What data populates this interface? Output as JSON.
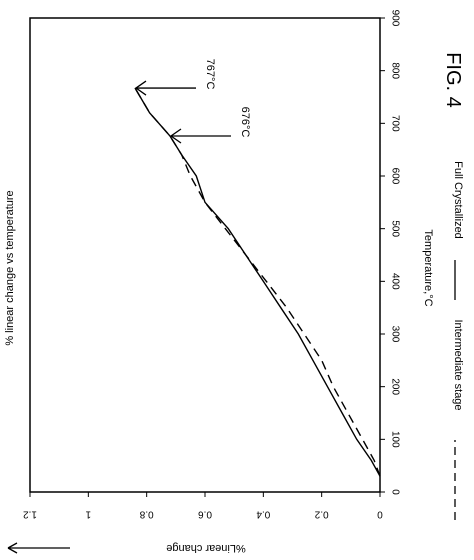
{
  "figure_label": "FIG. 4",
  "chart_data": {
    "type": "line",
    "orientation": "rotated-90-clockwise",
    "title": "% linear change vs temperature",
    "xlabel": "Temperature,°C",
    "ylabel": "%Linear change",
    "xlim": [
      0,
      900
    ],
    "ylim": [
      0,
      1.2
    ],
    "x_ticks": [
      "0",
      "100",
      "200",
      "300",
      "400",
      "500",
      "600",
      "700",
      "800",
      "900"
    ],
    "y_ticks": [
      "0",
      "0.2",
      "0.4",
      "0.6",
      "0.8",
      "1",
      "1.2"
    ],
    "grid": false,
    "legend_position": "bottom",
    "series": [
      {
        "name": "Intermediate stage",
        "style": "dashed",
        "points": [
          [
            30,
            0
          ],
          [
            60,
            0.02
          ],
          [
            100,
            0.06
          ],
          [
            150,
            0.11
          ],
          [
            200,
            0.16
          ],
          [
            250,
            0.2
          ],
          [
            300,
            0.26
          ],
          [
            350,
            0.32
          ],
          [
            400,
            0.39
          ],
          [
            450,
            0.46
          ],
          [
            500,
            0.53
          ],
          [
            550,
            0.6
          ],
          [
            600,
            0.65
          ],
          [
            640,
            0.68
          ],
          [
            676,
            0.72
          ],
          [
            720,
            0.79
          ],
          [
            767,
            0.84
          ]
        ]
      },
      {
        "name": "Full Crystallized",
        "style": "solid",
        "points": [
          [
            30,
            0
          ],
          [
            60,
            0.03
          ],
          [
            100,
            0.08
          ],
          [
            150,
            0.13
          ],
          [
            200,
            0.18
          ],
          [
            250,
            0.23
          ],
          [
            300,
            0.28
          ],
          [
            350,
            0.34
          ],
          [
            400,
            0.4
          ],
          [
            450,
            0.46
          ],
          [
            500,
            0.52
          ],
          [
            550,
            0.6
          ],
          [
            600,
            0.63
          ],
          [
            640,
            0.68
          ],
          [
            676,
            0.72
          ],
          [
            720,
            0.79
          ],
          [
            767,
            0.84
          ]
        ]
      }
    ],
    "annotations": [
      {
        "text": "767°C",
        "x": 767,
        "y": 0.84
      },
      {
        "text": "676°C",
        "x": 676,
        "y": 0.72
      }
    ]
  }
}
